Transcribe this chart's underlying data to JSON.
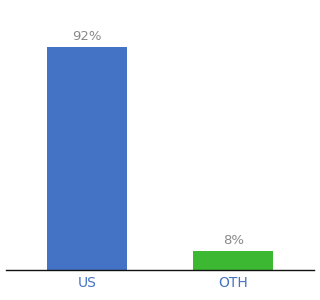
{
  "categories": [
    "US",
    "OTH"
  ],
  "values": [
    92,
    8
  ],
  "bar_colors": [
    "#4472c4",
    "#3cb832"
  ],
  "label_texts": [
    "92%",
    "8%"
  ],
  "label_color": "#888888",
  "label_fontsize": 9.5,
  "tick_fontsize": 10,
  "tick_color": "#4472c4",
  "ylim": [
    0,
    105
  ],
  "background_color": "#ffffff",
  "bar_width": 0.55,
  "x_positions": [
    0,
    1
  ]
}
